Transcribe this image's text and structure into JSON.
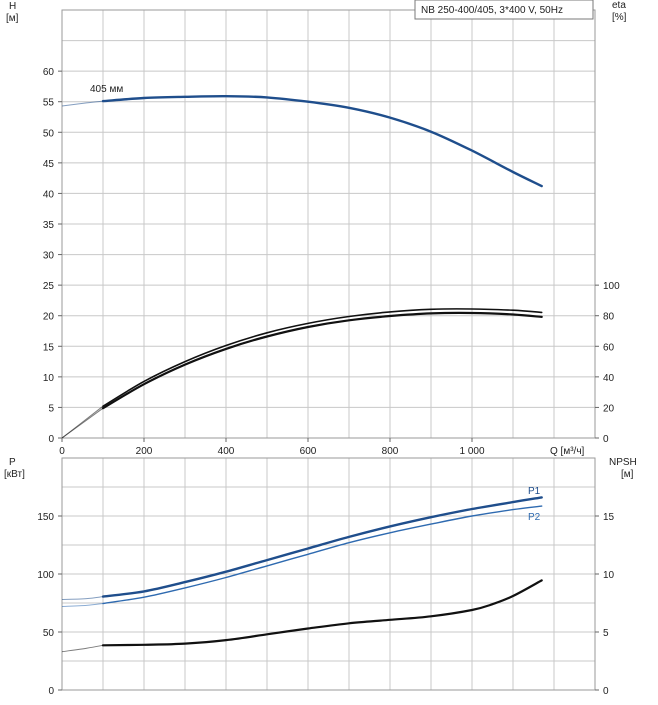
{
  "chart_data": [
    {
      "type": "line",
      "title": "NB 250-400/405, 3*400 V, 50Hz",
      "left_axis_label": "H",
      "left_axis_unit": "[м]",
      "right_axis_label": "eta",
      "right_axis_unit": "[%]",
      "x_axis_label": "Q [м³/ч]",
      "xlim": [
        0,
        1300
      ],
      "ylim": [
        0,
        70
      ],
      "eta_lim": [
        0,
        100
      ],
      "grid": true,
      "x_ticks": [
        "0",
        "200",
        "400",
        "600",
        "800",
        "1 000"
      ],
      "y_ticks": [
        "0",
        "5",
        "10",
        "15",
        "20",
        "25",
        "30",
        "35",
        "40",
        "45",
        "50",
        "55",
        "60"
      ],
      "eta_ticks": [
        "0",
        "20",
        "40",
        "60",
        "80",
        "100"
      ],
      "series": [
        {
          "name": "405 мм",
          "axis": "left",
          "color": "#1f4e8c",
          "x": [
            0,
            60,
            100,
            200,
            300,
            400,
            500,
            600,
            700,
            800,
            900,
            1000,
            1100,
            1170
          ],
          "values": [
            54.3,
            54.8,
            55.1,
            55.6,
            55.8,
            55.9,
            55.7,
            55.0,
            54.0,
            52.4,
            50.1,
            47.0,
            43.5,
            41.2
          ]
        },
        {
          "name": "",
          "axis": "right",
          "color": "#111111",
          "x": [
            0,
            100,
            200,
            300,
            400,
            500,
            600,
            700,
            800,
            900,
            1000,
            1100,
            1170
          ],
          "values": [
            0,
            19.5,
            35.2,
            48.0,
            58.3,
            66.4,
            72.6,
            77.0,
            79.8,
            81.5,
            81.8,
            80.8,
            79.2
          ]
        },
        {
          "name": "",
          "axis": "right",
          "color": "#111111",
          "x": [
            0,
            100,
            200,
            300,
            400,
            500,
            600,
            700,
            800,
            900,
            1000,
            1100,
            1170
          ],
          "values": [
            0,
            20.8,
            37.0,
            50.0,
            60.5,
            68.8,
            75.0,
            79.5,
            82.5,
            84.2,
            84.4,
            83.6,
            82.2
          ]
        }
      ]
    },
    {
      "type": "line",
      "left_axis_label": "P",
      "left_axis_unit": "[кВт]",
      "right_axis_label": "NPSH",
      "right_axis_unit": "[м]",
      "xlim": [
        0,
        1300
      ],
      "ylim": [
        0,
        200
      ],
      "npsh_lim": [
        0,
        20
      ],
      "grid": true,
      "y_ticks": [
        "0",
        "50",
        "100",
        "150"
      ],
      "npsh_ticks": [
        "0",
        "5",
        "10",
        "15"
      ],
      "series": [
        {
          "name": "P1",
          "axis": "left",
          "color": "#1f4e8c",
          "x": [
            0,
            60,
            100,
            200,
            300,
            400,
            500,
            600,
            700,
            800,
            900,
            1000,
            1100,
            1170
          ],
          "values": [
            78,
            78.8,
            80.5,
            85,
            93,
            102,
            112,
            122,
            132,
            141,
            149,
            156,
            162,
            166
          ]
        },
        {
          "name": "P2",
          "axis": "left",
          "color": "#2e6ab0",
          "x": [
            0,
            60,
            100,
            200,
            300,
            400,
            500,
            600,
            700,
            800,
            900,
            1000,
            1100,
            1170
          ],
          "values": [
            72,
            72.9,
            74.6,
            80,
            88,
            97,
            107,
            117,
            127,
            135.5,
            143,
            150,
            155.5,
            158.5
          ]
        },
        {
          "name": "",
          "axis": "right",
          "color": "#111111",
          "x": [
            0,
            60,
            100,
            200,
            300,
            400,
            500,
            600,
            700,
            800,
            900,
            1000,
            1050,
            1100,
            1170
          ],
          "values": [
            3.3,
            3.6,
            3.85,
            3.9,
            4.0,
            4.3,
            4.8,
            5.3,
            5.75,
            6.05,
            6.35,
            6.9,
            7.4,
            8.1,
            9.45
          ]
        }
      ]
    }
  ]
}
